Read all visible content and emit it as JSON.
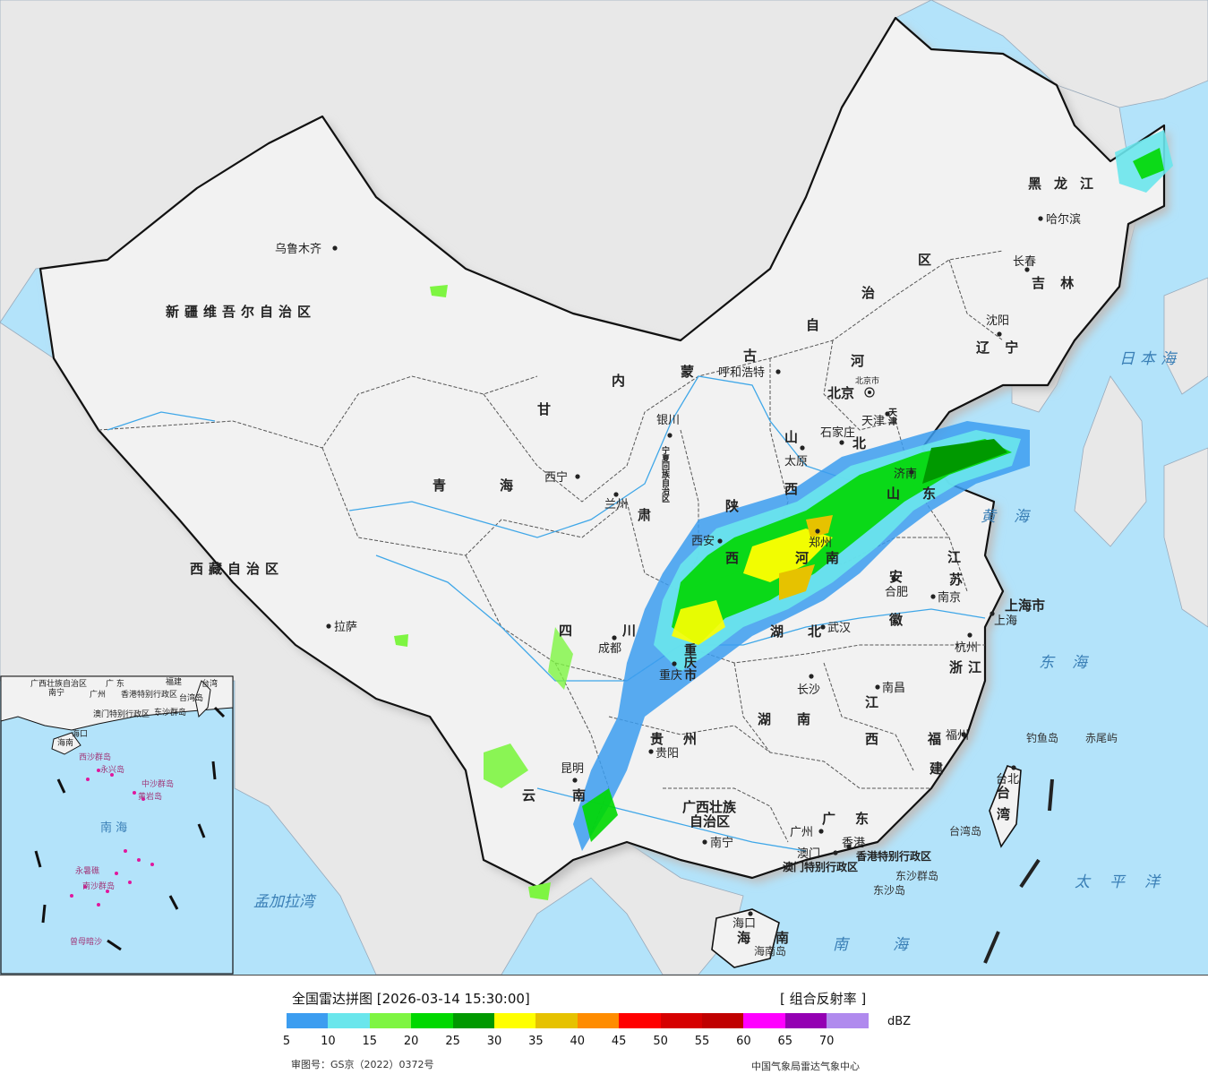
{
  "map": {
    "provinces": [
      {
        "id": "xinjiang",
        "label": "新疆维吾尔自治区"
      },
      {
        "id": "xizang",
        "label": "西藏自治区"
      },
      {
        "id": "qinghai",
        "label": "青海"
      },
      {
        "id": "gansu-1",
        "label": "甘"
      },
      {
        "id": "gansu-2",
        "label": "肃"
      },
      {
        "id": "neimenggu-1",
        "label": "内"
      },
      {
        "id": "neimenggu-2",
        "label": "蒙"
      },
      {
        "id": "neimenggu-3",
        "label": "古"
      },
      {
        "id": "neimenggu-4",
        "label": "自"
      },
      {
        "id": "neimenggu-5",
        "label": "治"
      },
      {
        "id": "neimenggu-6",
        "label": "区"
      },
      {
        "id": "heilongjiang",
        "label": "黑龙江"
      },
      {
        "id": "jilin",
        "label": "吉 林"
      },
      {
        "id": "liaoning",
        "label": "辽 宁"
      },
      {
        "id": "hebei-1",
        "label": "河"
      },
      {
        "id": "hebei-2",
        "label": "北"
      },
      {
        "id": "shanxi-1",
        "label": "山"
      },
      {
        "id": "shanxi-2",
        "label": "西"
      },
      {
        "id": "shaanxi-1",
        "label": "陕"
      },
      {
        "id": "shaanxi-2",
        "label": "西"
      },
      {
        "id": "ningxia",
        "label": "宁夏回族自治区"
      },
      {
        "id": "shandong-1",
        "label": "山"
      },
      {
        "id": "shandong-2",
        "label": "东"
      },
      {
        "id": "henan-1",
        "label": "河"
      },
      {
        "id": "henan-2",
        "label": "南"
      },
      {
        "id": "jiangsu-1",
        "label": "江"
      },
      {
        "id": "jiangsu-2",
        "label": "苏"
      },
      {
        "id": "anhui-1",
        "label": "安"
      },
      {
        "id": "anhui-2",
        "label": "徽"
      },
      {
        "id": "sichuan-1",
        "label": "四"
      },
      {
        "id": "sichuan-2",
        "label": "川"
      },
      {
        "id": "hubei-1",
        "label": "湖"
      },
      {
        "id": "hubei-2",
        "label": "北"
      },
      {
        "id": "chongqing",
        "label": "重庆市"
      },
      {
        "id": "zhejiang",
        "label": "浙江"
      },
      {
        "id": "guizhou-1",
        "label": "贵"
      },
      {
        "id": "guizhou-2",
        "label": "州"
      },
      {
        "id": "hunan-1",
        "label": "湖"
      },
      {
        "id": "hunan-2",
        "label": "南"
      },
      {
        "id": "jiangxi-1",
        "label": "江"
      },
      {
        "id": "jiangxi-2",
        "label": "西"
      },
      {
        "id": "fujian-1",
        "label": "福"
      },
      {
        "id": "fujian-2",
        "label": "建"
      },
      {
        "id": "yunnan-1",
        "label": "云"
      },
      {
        "id": "yunnan-2",
        "label": "南"
      },
      {
        "id": "guangxi-1",
        "label": "广西壮族"
      },
      {
        "id": "guangxi-2",
        "label": "自治区"
      },
      {
        "id": "guangdong-1",
        "label": "广"
      },
      {
        "id": "guangdong-2",
        "label": "东"
      },
      {
        "id": "hainan-1",
        "label": "海"
      },
      {
        "id": "hainan-2",
        "label": "南"
      },
      {
        "id": "taiwan-1",
        "label": "台"
      },
      {
        "id": "taiwan-2",
        "label": "湾"
      },
      {
        "id": "shanghai",
        "label": "上海市"
      },
      {
        "id": "beijing",
        "label": "北京"
      },
      {
        "id": "tianjin",
        "label": "天津"
      },
      {
        "id": "hk",
        "label": "香港特别行政区"
      },
      {
        "id": "macau",
        "label": "澳门特别行政区"
      }
    ],
    "cities": [
      {
        "id": "urumqi",
        "label": "乌鲁木齐"
      },
      {
        "id": "lhasa",
        "label": "拉萨"
      },
      {
        "id": "xining",
        "label": "西宁"
      },
      {
        "id": "lanzhou",
        "label": "兰州"
      },
      {
        "id": "yinchuan",
        "label": "银川"
      },
      {
        "id": "hohhot",
        "label": "呼和浩特"
      },
      {
        "id": "harbin",
        "label": "哈尔滨"
      },
      {
        "id": "changchun",
        "label": "长春"
      },
      {
        "id": "shenyang",
        "label": "沈阳"
      },
      {
        "id": "beijing-city",
        "label": "北京市"
      },
      {
        "id": "tianjin-city",
        "label": "天津"
      },
      {
        "id": "shijiazhuang",
        "label": "石家庄"
      },
      {
        "id": "taiyuan",
        "label": "太原"
      },
      {
        "id": "jinan",
        "label": "济南"
      },
      {
        "id": "zhengzhou",
        "label": "郑州"
      },
      {
        "id": "xian",
        "label": "西安"
      },
      {
        "id": "chengdu",
        "label": "成都"
      },
      {
        "id": "chongqing-city",
        "label": "重庆"
      },
      {
        "id": "wuhan",
        "label": "武汉"
      },
      {
        "id": "hefei",
        "label": "合肥"
      },
      {
        "id": "nanjing",
        "label": "南京"
      },
      {
        "id": "shanghai-city",
        "label": "上海"
      },
      {
        "id": "hangzhou",
        "label": "杭州"
      },
      {
        "id": "changsha",
        "label": "长沙"
      },
      {
        "id": "nanchang",
        "label": "南昌"
      },
      {
        "id": "fuzhou",
        "label": "福州"
      },
      {
        "id": "taipei",
        "label": "台北"
      },
      {
        "id": "guiyang",
        "label": "贵阳"
      },
      {
        "id": "kunming",
        "label": "昆明"
      },
      {
        "id": "nanning",
        "label": "南宁"
      },
      {
        "id": "guangzhou",
        "label": "广州"
      },
      {
        "id": "hongkong",
        "label": "香港"
      },
      {
        "id": "macao",
        "label": "澳门"
      },
      {
        "id": "haikou",
        "label": "海口"
      }
    ],
    "seas": [
      {
        "id": "japan-sea",
        "label": "日本海"
      },
      {
        "id": "yellow-sea",
        "label": "黄海"
      },
      {
        "id": "east-sea",
        "label": "东海"
      },
      {
        "id": "pacific",
        "label": "太平洋"
      },
      {
        "id": "south-sea",
        "label": "南海"
      },
      {
        "id": "bengal",
        "label": "孟加拉湾"
      }
    ],
    "islands": [
      {
        "id": "diaoyu",
        "label": "钓鱼岛"
      },
      {
        "id": "chiwei",
        "label": "赤尾屿"
      },
      {
        "id": "taiwan-island",
        "label": "台湾岛"
      },
      {
        "id": "dongsha",
        "label": "东沙群岛"
      },
      {
        "id": "dongsha-2",
        "label": "东沙岛"
      },
      {
        "id": "hainan-island",
        "label": "海南岛"
      }
    ],
    "inset": {
      "labels": [
        {
          "id": "in-guangxi",
          "label": "广西壮族自治区"
        },
        {
          "id": "in-nanning",
          "label": "南宁"
        },
        {
          "id": "in-guangdong",
          "label": "广 东"
        },
        {
          "id": "in-fujian",
          "label": "福建"
        },
        {
          "id": "in-taiwan",
          "label": "台湾"
        },
        {
          "id": "in-guangzhou",
          "label": "广州"
        },
        {
          "id": "in-hk",
          "label": "香港特别行政区"
        },
        {
          "id": "in-macau",
          "label": "澳门特别行政区"
        },
        {
          "id": "in-dongsha",
          "label": "东沙群岛"
        },
        {
          "id": "in-taiwan-island",
          "label": "台湾岛"
        },
        {
          "id": "in-haikou",
          "label": "海口"
        },
        {
          "id": "in-hainan",
          "label": "海南"
        },
        {
          "id": "in-xisha",
          "label": "西沙群岛"
        },
        {
          "id": "in-yongxing",
          "label": "永兴岛"
        },
        {
          "id": "in-zhongsha",
          "label": "中沙群岛"
        },
        {
          "id": "in-huangyan",
          "label": "黄岩岛"
        },
        {
          "id": "in-south-sea",
          "label": "南 海"
        },
        {
          "id": "in-yongshu",
          "label": "永暑礁"
        },
        {
          "id": "in-nansha",
          "label": "南沙群岛"
        },
        {
          "id": "in-zengmu",
          "label": "曾母暗沙"
        }
      ]
    },
    "colors": {
      "sea": "#b3e3fa",
      "land": "#f2f2f2",
      "foreign": "#e8e8e8",
      "border": "#111111",
      "river": "#3fa7e8"
    }
  },
  "footer": {
    "title": "全国雷达拼图 [2026-03-14 15:30:00]",
    "product": "[ 组合反射率 ]",
    "unit": "dBZ",
    "review_no": "审图号：GS京（2022）0372号",
    "credit": "中国气象局雷达气象中心",
    "legend": {
      "colors": [
        "#3c9df0",
        "#6ae6ec",
        "#7ef542",
        "#00d800",
        "#009900",
        "#ffff00",
        "#e6c200",
        "#ff8c00",
        "#ff0000",
        "#d60000",
        "#c00000",
        "#ff00ff",
        "#9400b3",
        "#b08aee"
      ],
      "ticks": [
        "5",
        "10",
        "15",
        "20",
        "25",
        "30",
        "35",
        "40",
        "45",
        "50",
        "55",
        "60",
        "65",
        "70"
      ]
    }
  }
}
